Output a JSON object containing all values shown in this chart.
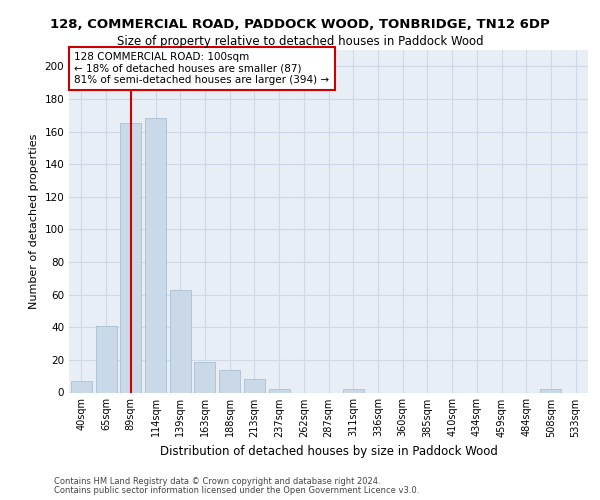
{
  "title": "128, COMMERCIAL ROAD, PADDOCK WOOD, TONBRIDGE, TN12 6DP",
  "subtitle": "Size of property relative to detached houses in Paddock Wood",
  "xlabel": "Distribution of detached houses by size in Paddock Wood",
  "ylabel": "Number of detached properties",
  "categories": [
    "40sqm",
    "65sqm",
    "89sqm",
    "114sqm",
    "139sqm",
    "163sqm",
    "188sqm",
    "213sqm",
    "237sqm",
    "262sqm",
    "287sqm",
    "311sqm",
    "336sqm",
    "360sqm",
    "385sqm",
    "410sqm",
    "434sqm",
    "459sqm",
    "484sqm",
    "508sqm",
    "533sqm"
  ],
  "values": [
    7,
    41,
    165,
    168,
    63,
    19,
    14,
    8,
    2,
    0,
    0,
    2,
    0,
    0,
    0,
    0,
    0,
    0,
    0,
    2,
    0
  ],
  "bar_color": "#c9d9e8",
  "bar_edge_color": "#a0b8cc",
  "grid_color": "#d0d8e8",
  "background_color": "#e8eef6",
  "property_line_x": 2,
  "annotation_text_line1": "128 COMMERCIAL ROAD: 100sqm",
  "annotation_text_line2": "← 18% of detached houses are smaller (87)",
  "annotation_text_line3": "81% of semi-detached houses are larger (394) →",
  "red_line_color": "#cc0000",
  "annotation_box_color": "#ffffff",
  "annotation_box_edge": "#cc0000",
  "footer1": "Contains HM Land Registry data © Crown copyright and database right 2024.",
  "footer2": "Contains public sector information licensed under the Open Government Licence v3.0.",
  "ylim": [
    0,
    210
  ],
  "yticks": [
    0,
    20,
    40,
    60,
    80,
    100,
    120,
    140,
    160,
    180,
    200
  ]
}
